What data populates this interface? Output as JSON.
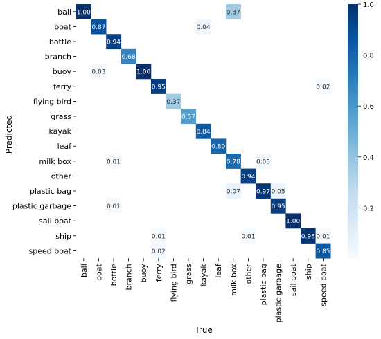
{
  "chart_data": {
    "type": "heatmap",
    "title": "",
    "xlabel": "True",
    "ylabel": "Predicted",
    "categories": [
      "ball",
      "boat",
      "bottle",
      "branch",
      "buoy",
      "ferry",
      "flying bird",
      "grass",
      "kayak",
      "leaf",
      "milk box",
      "other",
      "plastic bag",
      "plastic garbage",
      "sail boat",
      "ship",
      "speed boat"
    ],
    "cells": [
      {
        "row": 0,
        "col": 0,
        "value": 1.0
      },
      {
        "row": 0,
        "col": 10,
        "value": 0.37
      },
      {
        "row": 1,
        "col": 1,
        "value": 0.87
      },
      {
        "row": 1,
        "col": 8,
        "value": 0.04
      },
      {
        "row": 2,
        "col": 2,
        "value": 0.94
      },
      {
        "row": 3,
        "col": 3,
        "value": 0.68
      },
      {
        "row": 4,
        "col": 1,
        "value": 0.03
      },
      {
        "row": 4,
        "col": 4,
        "value": 1.0
      },
      {
        "row": 5,
        "col": 5,
        "value": 0.95
      },
      {
        "row": 5,
        "col": 16,
        "value": 0.02
      },
      {
        "row": 6,
        "col": 6,
        "value": 0.37
      },
      {
        "row": 7,
        "col": 7,
        "value": 0.57
      },
      {
        "row": 8,
        "col": 8,
        "value": 0.84
      },
      {
        "row": 9,
        "col": 9,
        "value": 0.8
      },
      {
        "row": 10,
        "col": 2,
        "value": 0.01
      },
      {
        "row": 10,
        "col": 10,
        "value": 0.78
      },
      {
        "row": 10,
        "col": 12,
        "value": 0.03
      },
      {
        "row": 11,
        "col": 11,
        "value": 0.94
      },
      {
        "row": 12,
        "col": 10,
        "value": 0.07
      },
      {
        "row": 12,
        "col": 12,
        "value": 0.97
      },
      {
        "row": 12,
        "col": 13,
        "value": 0.05
      },
      {
        "row": 13,
        "col": 2,
        "value": 0.01
      },
      {
        "row": 13,
        "col": 13,
        "value": 0.95
      },
      {
        "row": 14,
        "col": 14,
        "value": 1.0
      },
      {
        "row": 15,
        "col": 5,
        "value": 0.01
      },
      {
        "row": 15,
        "col": 11,
        "value": 0.01
      },
      {
        "row": 15,
        "col": 15,
        "value": 0.98
      },
      {
        "row": 15,
        "col": 16,
        "value": 0.01
      },
      {
        "row": 16,
        "col": 5,
        "value": 0.02
      },
      {
        "row": 16,
        "col": 16,
        "value": 0.85
      }
    ],
    "colorscale": "Blues",
    "range": [
      0,
      1.0
    ],
    "colorbar_ticks": [
      "0.2",
      "0.4",
      "0.6",
      "0.8",
      "1.0"
    ],
    "colorbar_tick_values": [
      0.2,
      0.4,
      0.6,
      0.8,
      1.0
    ],
    "grid": false
  }
}
